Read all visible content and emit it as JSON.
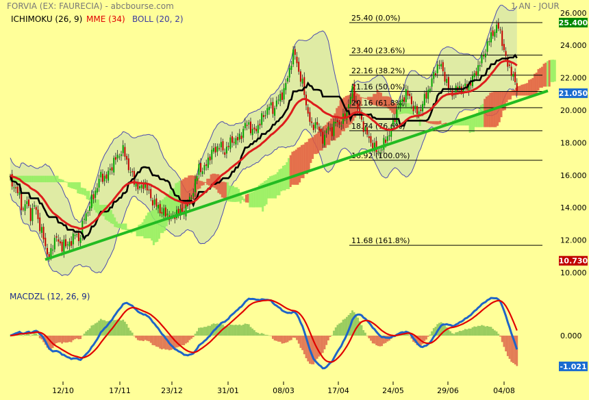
{
  "header": {
    "title": "FORVIA (EX: FAURECIA) - abcbourse.com",
    "period": "1 AN - JOUR"
  },
  "legend": [
    {
      "label": "ICHIMOKU (26, 9)",
      "color": "#000000"
    },
    {
      "label": "MME (34)",
      "color": "#e00000"
    },
    {
      "label": "BOLL (20, 2)",
      "color": "#3a3aa0"
    }
  ],
  "colors": {
    "background": "#ffff99",
    "candle_up": "#00a000",
    "candle_down": "#c00000",
    "ichimoku": "#000000",
    "mme": "#dd1c1c",
    "bollinger_fill": "#d4e4a8",
    "bollinger_line": "#4a4ab0",
    "trendline": "#22bb22",
    "cloud_bull": "#90ee60",
    "cloud_bear": "#e05a40",
    "macd_line": "#1e64c8",
    "signal_line": "#e00000",
    "badge_green": "#008800",
    "badge_blue": "#1a6bd0",
    "badge_red": "#c00000"
  },
  "chart_data": [
    {
      "type": "candlestick",
      "x_tick_labels": [
        "12/10",
        "17/11",
        "23/12",
        "31/01",
        "08/03",
        "17/04",
        "24/05",
        "29/06",
        "04/08"
      ],
      "y_tick_labels": [
        "10.000",
        "12.000",
        "14.000",
        "16.000",
        "18.000",
        "20.000",
        "22.000",
        "24.000",
        "26.000"
      ],
      "ylim": [
        10,
        26.4
      ],
      "price_series": [
        [
          0,
          15.6
        ],
        [
          8,
          15.2
        ],
        [
          14,
          14.6
        ],
        [
          18,
          13.8
        ],
        [
          24,
          14.4
        ],
        [
          30,
          13.5
        ],
        [
          36,
          14.2
        ],
        [
          42,
          13.0
        ],
        [
          48,
          12.2
        ],
        [
          54,
          11.2
        ],
        [
          58,
          10.9
        ],
        [
          62,
          11.6
        ],
        [
          66,
          12.4
        ],
        [
          70,
          11.9
        ],
        [
          74,
          11.4
        ],
        [
          78,
          12.0
        ],
        [
          82,
          11.5
        ],
        [
          86,
          11.8
        ],
        [
          92,
          12.2
        ],
        [
          96,
          12.4
        ],
        [
          100,
          12.0
        ],
        [
          104,
          12.6
        ],
        [
          108,
          13.4
        ],
        [
          114,
          13.9
        ],
        [
          120,
          14.6
        ],
        [
          126,
          15.2
        ],
        [
          132,
          16.0
        ],
        [
          140,
          15.8
        ],
        [
          146,
          16.4
        ],
        [
          152,
          16.9
        ],
        [
          158,
          17.2
        ],
        [
          164,
          17.6
        ],
        [
          168,
          17.2
        ],
        [
          172,
          16.6
        ],
        [
          178,
          15.9
        ],
        [
          184,
          15.4
        ],
        [
          190,
          15.1
        ],
        [
          196,
          15.6
        ],
        [
          202,
          14.9
        ],
        [
          208,
          14.4
        ],
        [
          214,
          14.1
        ],
        [
          220,
          13.8
        ],
        [
          226,
          13.6
        ],
        [
          232,
          13.5
        ],
        [
          238,
          13.3
        ],
        [
          244,
          13.9
        ],
        [
          250,
          13.6
        ],
        [
          256,
          14.0
        ],
        [
          262,
          14.4
        ],
        [
          268,
          15.2
        ],
        [
          272,
          15.9
        ],
        [
          276,
          16.6
        ],
        [
          282,
          16.2
        ],
        [
          288,
          16.9
        ],
        [
          294,
          17.4
        ],
        [
          300,
          17.6
        ],
        [
          306,
          17.9
        ],
        [
          312,
          17.4
        ],
        [
          318,
          17.8
        ],
        [
          324,
          18.2
        ],
        [
          330,
          18.1
        ],
        [
          336,
          18.4
        ],
        [
          342,
          19.0
        ],
        [
          348,
          19.2
        ],
        [
          354,
          18.6
        ],
        [
          360,
          18.9
        ],
        [
          366,
          19.4
        ],
        [
          372,
          19.8
        ],
        [
          378,
          20.3
        ],
        [
          384,
          20.0
        ],
        [
          390,
          20.6
        ],
        [
          396,
          20.9
        ],
        [
          402,
          21.5
        ],
        [
          406,
          22.2
        ],
        [
          410,
          23.0
        ],
        [
          414,
          23.6
        ],
        [
          418,
          23.1
        ],
        [
          422,
          22.2
        ],
        [
          428,
          21.4
        ],
        [
          434,
          19.9
        ],
        [
          440,
          18.9
        ],
        [
          446,
          19.3
        ],
        [
          452,
          18.6
        ],
        [
          458,
          18.2
        ],
        [
          464,
          19.0
        ],
        [
          470,
          18.7
        ],
        [
          476,
          19.4
        ],
        [
          482,
          19.1
        ],
        [
          488,
          19.6
        ],
        [
          494,
          20.4
        ],
        [
          500,
          21.3
        ],
        [
          506,
          20.3
        ],
        [
          512,
          19.4
        ],
        [
          518,
          18.8
        ],
        [
          524,
          18.2
        ],
        [
          530,
          17.8
        ],
        [
          536,
          17.4
        ],
        [
          542,
          17.6
        ],
        [
          548,
          18.2
        ],
        [
          554,
          18.6
        ],
        [
          560,
          19.4
        ],
        [
          566,
          20.2
        ],
        [
          572,
          20.6
        ],
        [
          578,
          21.1
        ],
        [
          584,
          20.7
        ],
        [
          590,
          20.0
        ],
        [
          596,
          19.8
        ],
        [
          602,
          20.4
        ],
        [
          608,
          21.0
        ],
        [
          614,
          21.6
        ],
        [
          620,
          22.4
        ],
        [
          626,
          22.9
        ],
        [
          632,
          22.4
        ],
        [
          638,
          21.6
        ],
        [
          644,
          21.0
        ],
        [
          650,
          21.2
        ],
        [
          656,
          21.4
        ],
        [
          662,
          21.3
        ],
        [
          668,
          21.5
        ],
        [
          674,
          21.8
        ],
        [
          680,
          22.4
        ],
        [
          686,
          22.9
        ],
        [
          692,
          23.5
        ],
        [
          698,
          24.2
        ],
        [
          704,
          24.8
        ],
        [
          710,
          25.0
        ],
        [
          714,
          25.2
        ],
        [
          718,
          24.3
        ],
        [
          722,
          23.3
        ],
        [
          726,
          22.9
        ],
        [
          730,
          22.6
        ],
        [
          734,
          22.0
        ],
        [
          738,
          21.6
        ],
        [
          742,
          21.2
        ],
        [
          748,
          21.4
        ],
        [
          754,
          21.05
        ]
      ],
      "last_price": "21.050",
      "high_price_label": "25.400",
      "low_price_label": "10.730",
      "fibonacci_levels": [
        {
          "label": "25.40  (0.0%)",
          "value": 25.4
        },
        {
          "label": "23.40  (23.6%)",
          "value": 23.4
        },
        {
          "label": "22.16  (38.2%)",
          "value": 22.16
        },
        {
          "label": "21.16  (50.0%)",
          "value": 21.16
        },
        {
          "label": "20.16  (61.8%)",
          "value": 20.16
        },
        {
          "label": "18.74  (76.6%)",
          "value": 18.74
        },
        {
          "label": "16.92  (100.0%)",
          "value": 16.92
        },
        {
          "label": "11.68  (161.8%)",
          "value": 11.68
        }
      ],
      "trendline": [
        [
          66,
          10.8
        ],
        [
          800,
          21.2
        ]
      ]
    },
    {
      "type": "line",
      "title": "MACDZL (12, 26, 9)",
      "y_tick_labels": [
        "0.000"
      ],
      "ylim": [
        -1.5,
        1.4
      ],
      "last_value": "-1.021"
    }
  ]
}
